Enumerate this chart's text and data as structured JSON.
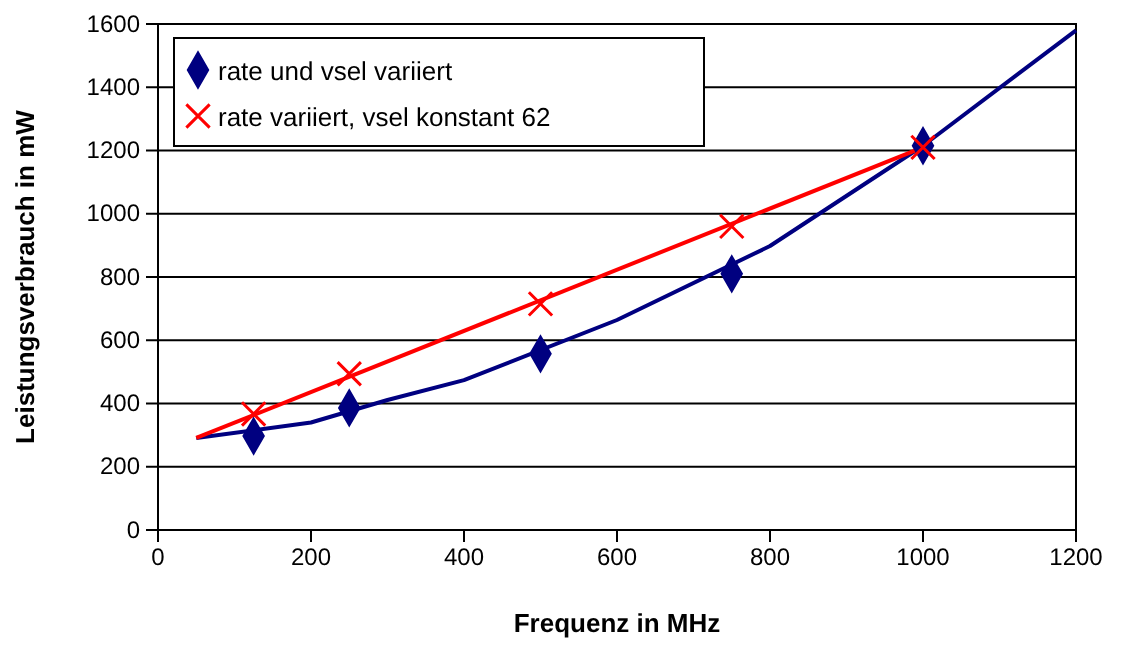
{
  "chart_data": {
    "type": "scatter",
    "xlabel": "Frequenz in MHz",
    "ylabel": "Leistungsverbrauch in mW",
    "xlim": [
      0,
      1200
    ],
    "xticks": [
      0,
      200,
      400,
      600,
      800,
      1000,
      1200
    ],
    "ylim": [
      0,
      1600
    ],
    "yticks": [
      0,
      200,
      400,
      600,
      800,
      1000,
      1200,
      1400,
      1600
    ],
    "grid": "y",
    "legend": "top left",
    "series": [
      {
        "name": "rate und vsel variiert",
        "color": "#000080",
        "marker": "diamond",
        "x": [
          125,
          250,
          500,
          750,
          1000
        ],
        "values": [
          297,
          386,
          557,
          810,
          1215
        ]
      },
      {
        "name": "rate variiert, vsel konstant 62",
        "color": "#ff0000",
        "marker": "cross",
        "x": [
          125,
          250,
          500,
          750,
          1000
        ],
        "values": [
          367,
          494,
          715,
          960,
          1210
        ]
      },
      {
        "type": "line",
        "color": "#000080",
        "marker": "none",
        "x": [
          50,
          200,
          300,
          400,
          600,
          800,
          1000,
          1200
        ],
        "values": [
          291,
          340,
          411,
          474,
          664,
          898,
          1215,
          1580
        ]
      },
      {
        "type": "line",
        "color": "#ff0000",
        "marker": "none",
        "x": [
          50,
          1000
        ],
        "values": [
          291,
          1210
        ]
      }
    ]
  }
}
